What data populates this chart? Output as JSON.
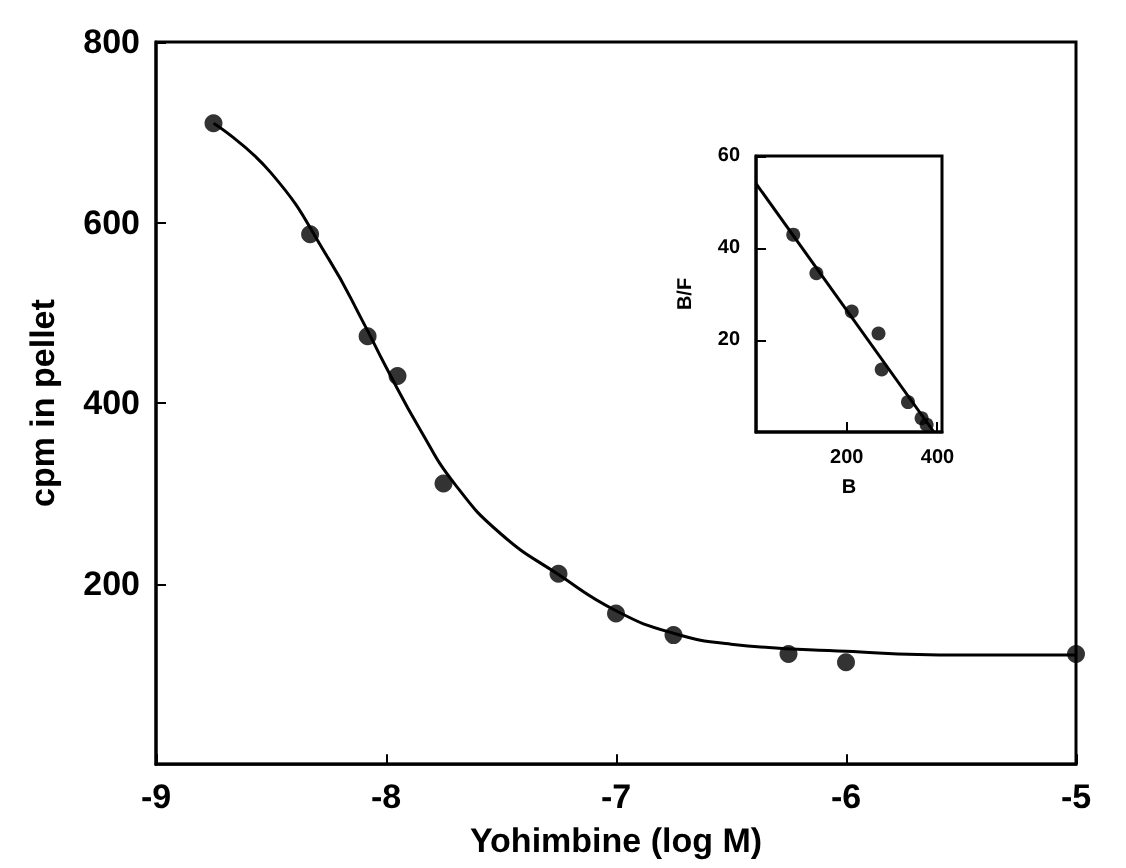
{
  "chart_data": [
    {
      "type": "scatter",
      "xlabel": "Yohimbine (log M)",
      "ylabel": "cpm in pellet",
      "xlim": [
        -9,
        -5
      ],
      "xticks": [
        -9,
        -8,
        -7,
        -6,
        -5
      ],
      "ylim": [
        0,
        800
      ],
      "yticks": [
        200,
        400,
        600,
        800
      ],
      "grid": false,
      "series": [
        {
          "color": "#000000",
          "marker": "circle",
          "x": [
            -8.75,
            -8.33,
            -8.08,
            -7.95,
            -7.75,
            -7.25,
            -7.0,
            -6.75,
            -6.25,
            -6.0,
            -5.0
          ],
          "values": [
            710,
            587,
            474,
            430,
            311,
            211,
            167,
            143,
            122,
            113,
            122
          ]
        },
        {
          "type": "line",
          "color": "#000000",
          "marker": "none",
          "line_style": "solid",
          "x": [
            -8.75,
            -8.5,
            -8.25,
            -8.1,
            -8.0,
            -7.85,
            -7.7,
            -7.5,
            -7.25,
            -7.0,
            -6.75,
            -6.5,
            -6.0,
            -5.5,
            -5.0
          ],
          "values": [
            710,
            655,
            560,
            490,
            440,
            370,
            310,
            255,
            210,
            170,
            145,
            133,
            125,
            121,
            121
          ]
        }
      ]
    },
    {
      "type": "scatter",
      "xlabel": "B",
      "ylabel": "B/F",
      "xlim": [
        0,
        410
      ],
      "xticks": [
        200,
        400
      ],
      "ylim": [
        0,
        60
      ],
      "yticks": [
        20,
        40,
        60
      ],
      "grid": false,
      "series": [
        {
          "color": "#000000",
          "marker": "circle",
          "x": [
            82,
            133,
            211,
            270,
            277,
            335,
            365,
            376
          ],
          "values": [
            42.9,
            34.5,
            26.2,
            21.4,
            13.6,
            6.5,
            3,
            1.6
          ]
        },
        {
          "type": "line",
          "color": "#000000",
          "marker": "none",
          "line_style": "solid",
          "x": [
            0,
            392
          ],
          "values": [
            54,
            0
          ]
        }
      ]
    }
  ]
}
